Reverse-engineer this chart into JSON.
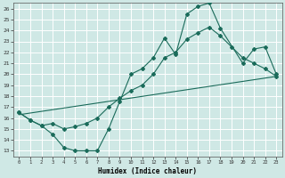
{
  "xlabel": "Humidex (Indice chaleur)",
  "bg_color": "#cfe8e5",
  "grid_color": "#ffffff",
  "line_color": "#1a6b5a",
  "xlim": [
    -0.5,
    23.5
  ],
  "ylim": [
    12.5,
    26.5
  ],
  "xticks": [
    0,
    1,
    2,
    3,
    4,
    5,
    6,
    7,
    8,
    9,
    10,
    11,
    12,
    13,
    14,
    15,
    16,
    17,
    18,
    19,
    20,
    21,
    22,
    23
  ],
  "yticks": [
    13,
    14,
    15,
    16,
    17,
    18,
    19,
    20,
    21,
    22,
    23,
    24,
    25,
    26
  ],
  "line1_x": [
    0,
    1,
    2,
    3,
    4,
    5,
    6,
    7,
    8,
    9,
    10,
    11,
    12,
    13,
    14,
    15,
    16,
    17,
    18,
    20,
    21,
    22,
    23
  ],
  "line1_y": [
    16.5,
    15.8,
    15.3,
    14.5,
    13.3,
    13.0,
    13.0,
    13.0,
    15.0,
    17.5,
    20.0,
    20.5,
    21.5,
    23.3,
    21.8,
    25.5,
    26.2,
    26.5,
    24.2,
    21.0,
    22.3,
    22.5,
    20.0
  ],
  "line2_x": [
    0,
    1,
    2,
    3,
    4,
    5,
    6,
    7,
    8,
    9,
    10,
    11,
    12,
    13,
    14,
    15,
    16,
    17,
    18,
    19,
    20,
    21,
    22,
    23
  ],
  "line2_y": [
    16.5,
    15.8,
    15.3,
    15.5,
    15.0,
    15.2,
    15.5,
    16.0,
    17.0,
    17.8,
    18.5,
    19.0,
    20.0,
    21.5,
    22.0,
    23.2,
    23.8,
    24.3,
    23.5,
    22.5,
    21.5,
    21.0,
    20.5,
    19.8
  ],
  "line3_x": [
    0,
    23
  ],
  "line3_y": [
    16.3,
    19.8
  ],
  "marker": "D",
  "markersize": 2.0,
  "linewidth": 0.8
}
